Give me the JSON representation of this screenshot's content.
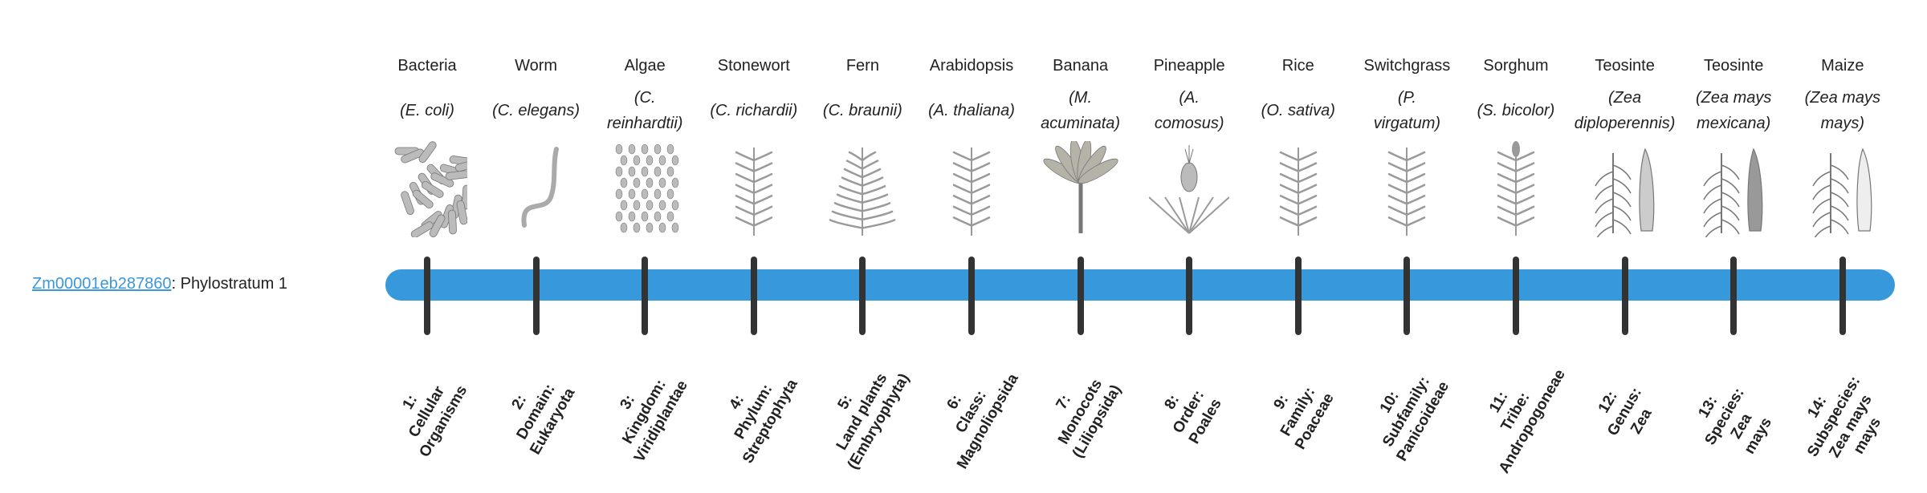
{
  "gene": {
    "id_link": "Zm00001eb287860",
    "suffix": ": Phylostratum 1"
  },
  "colors": {
    "bar": "#3799dc",
    "link": "#3a97dc",
    "tick": "#333333"
  },
  "phylostrata": [
    {
      "common": "Bacteria",
      "species": [
        "(E. coli)"
      ],
      "illustration": "bacteria-illustration",
      "label": [
        "1:",
        "Cellular",
        "Organisms"
      ]
    },
    {
      "common": "Worm",
      "species": [
        "(C. elegans)"
      ],
      "illustration": "worm-illustration",
      "label": [
        "2:",
        "Domain:",
        "Eukaryota"
      ]
    },
    {
      "common": "Algae",
      "species": [
        "(C.",
        "reinhardtii)"
      ],
      "illustration": "algae-illustration",
      "label": [
        "3:",
        "Kingdom:",
        "Viridiplantae"
      ]
    },
    {
      "common": "Stonewort",
      "species": [
        "(C. richardii)"
      ],
      "illustration": "stonewort-illustration",
      "label": [
        "4:",
        "Phylum:",
        "Streptophyta"
      ]
    },
    {
      "common": "Fern",
      "species": [
        "(C. braunii)"
      ],
      "illustration": "fern-illustration",
      "label": [
        "5:",
        "Land plants",
        "(Embryophyta)"
      ]
    },
    {
      "common": "Arabidopsis",
      "species": [
        "(A. thaliana)"
      ],
      "illustration": "arabidopsis-illustration",
      "label": [
        "6:",
        "Class:",
        "Magnoliopsida"
      ]
    },
    {
      "common": "Banana",
      "species": [
        "(M.",
        "acuminata)"
      ],
      "illustration": "banana-illustration",
      "label": [
        "7:",
        "Monocots",
        "(Liliopsida)"
      ]
    },
    {
      "common": "Pineapple",
      "species": [
        "(A.",
        "comosus)"
      ],
      "illustration": "pineapple-illustration",
      "label": [
        "8:",
        "Order:",
        "Poales"
      ]
    },
    {
      "common": "Rice",
      "species": [
        "(O. sativa)"
      ],
      "illustration": "rice-illustration",
      "label": [
        "9:",
        "Family:",
        "Poaceae"
      ]
    },
    {
      "common": "Switchgrass",
      "species": [
        "(P.",
        "virgatum)"
      ],
      "illustration": "switchgrass-illustration",
      "label": [
        "10:",
        "Subfamily:",
        "Panicoideae"
      ]
    },
    {
      "common": "Sorghum",
      "species": [
        "(S. bicolor)"
      ],
      "illustration": "sorghum-illustration",
      "label": [
        "11:",
        "Tribe:",
        "Andropogoneae"
      ]
    },
    {
      "common": "Teosinte",
      "species": [
        "(Zea",
        "diploperennis)"
      ],
      "illustration": "teosinte-illustration",
      "label": [
        "12:",
        "Genus:",
        "Zea"
      ]
    },
    {
      "common": "Teosinte",
      "species": [
        "(Zea mays",
        "mexicana)"
      ],
      "illustration": "teosinte-mexicana-illustration",
      "label": [
        "13:",
        "Species:",
        "Zea",
        "mays"
      ]
    },
    {
      "common": "Maize",
      "species": [
        "(Zea mays",
        "mays)"
      ],
      "illustration": "maize-illustration",
      "label": [
        "14:",
        "Subspecies:",
        "Zea mays",
        "mays"
      ]
    }
  ]
}
